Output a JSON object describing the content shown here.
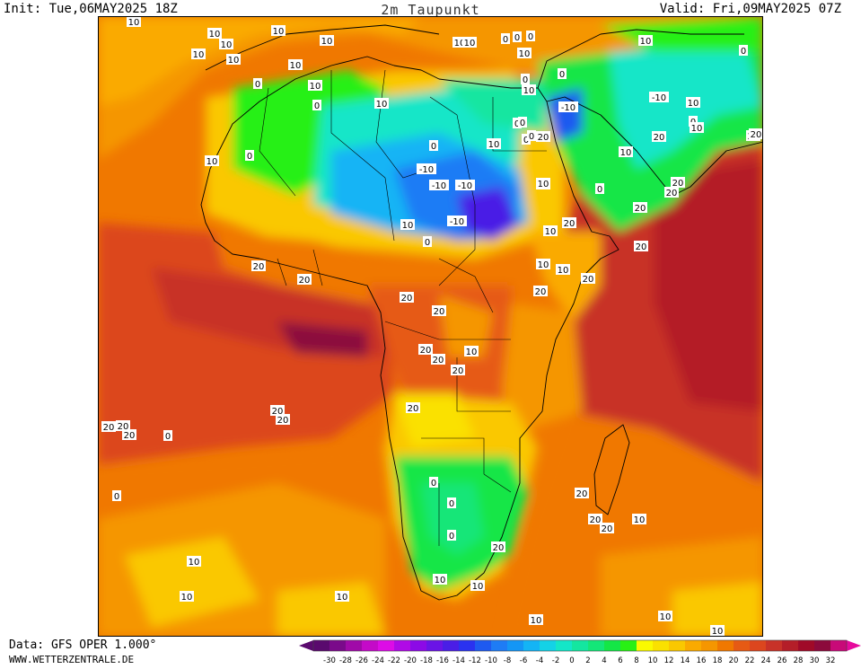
{
  "header": {
    "init_text": "Init: Tue,06MAY2025 18Z",
    "title": "2m Taupunkt",
    "valid_text": "Valid: Fri,09MAY2025 07Z"
  },
  "footer": {
    "data_text": "Data: GFS OPER 1.000°",
    "source_text": "WWW.WETTERZENTRALE.DE"
  },
  "colorbar": {
    "tick_labels": [
      "-30",
      "-28",
      "-26",
      "-24",
      "-22",
      "-20",
      "-18",
      "-16",
      "-14",
      "-12",
      "-10",
      "-8",
      "-6",
      "-4",
      "-2",
      "0",
      "2",
      "4",
      "6",
      "8",
      "10",
      "12",
      "14",
      "16",
      "18",
      "20",
      "22",
      "24",
      "26",
      "28",
      "30",
      "32"
    ],
    "colors": [
      "#5a0a6e",
      "#7a0a8a",
      "#a00aa8",
      "#c40ac8",
      "#dd0ce6",
      "#b00ae6",
      "#8c0ae6",
      "#6a14e6",
      "#4a1ee6",
      "#2a32f0",
      "#1e5af0",
      "#1e7cf5",
      "#1496f5",
      "#14b4f5",
      "#14d2e6",
      "#14e6c8",
      "#14e6a0",
      "#14e678",
      "#14e646",
      "#28f014",
      "#fafa00",
      "#fae100",
      "#fac800",
      "#faaa00",
      "#f59600",
      "#f07800",
      "#e65a14",
      "#dc461e",
      "#c83228",
      "#b41e28",
      "#a00a28",
      "#8c0a3c",
      "#c80a78"
    ],
    "under_color": "#5a0a6e",
    "over_color": "#e60a9c"
  },
  "map": {
    "contour_labels": [
      {
        "text": "10"
      },
      {
        "text": "10"
      },
      {
        "text": "10"
      },
      {
        "text": "10"
      },
      {
        "text": "10"
      },
      {
        "text": "10"
      },
      {
        "text": "10"
      },
      {
        "text": "10"
      },
      {
        "text": "0"
      },
      {
        "text": "0"
      },
      {
        "text": "0"
      },
      {
        "text": "10"
      },
      {
        "text": "0"
      },
      {
        "text": "0"
      },
      {
        "text": "0"
      },
      {
        "text": "10"
      },
      {
        "text": "10"
      },
      {
        "text": "10"
      },
      {
        "text": "0"
      },
      {
        "text": "0"
      },
      {
        "text": "10"
      },
      {
        "text": "-10"
      },
      {
        "text": "0"
      },
      {
        "text": "-10"
      },
      {
        "text": "10"
      },
      {
        "text": "0"
      },
      {
        "text": "0"
      },
      {
        "text": "20"
      },
      {
        "text": "0"
      },
      {
        "text": "0"
      },
      {
        "text": "10"
      },
      {
        "text": "-10"
      },
      {
        "text": "-10"
      },
      {
        "text": "-10"
      },
      {
        "text": "10"
      },
      {
        "text": "-10"
      },
      {
        "text": "10"
      },
      {
        "text": "10"
      },
      {
        "text": "0"
      },
      {
        "text": "10"
      },
      {
        "text": "0"
      },
      {
        "text": "20"
      },
      {
        "text": "10"
      },
      {
        "text": "20"
      },
      {
        "text": "20"
      },
      {
        "text": "10"
      },
      {
        "text": "10"
      },
      {
        "text": "0"
      },
      {
        "text": "0"
      },
      {
        "text": "20"
      },
      {
        "text": "20"
      },
      {
        "text": "20"
      },
      {
        "text": "20"
      },
      {
        "text": "10"
      },
      {
        "text": "20"
      },
      {
        "text": "10"
      },
      {
        "text": "10"
      },
      {
        "text": "20"
      },
      {
        "text": "20"
      },
      {
        "text": "20"
      },
      {
        "text": "20"
      },
      {
        "text": "20"
      },
      {
        "text": "20"
      },
      {
        "text": "20"
      },
      {
        "text": "20"
      },
      {
        "text": "10"
      },
      {
        "text": "20"
      },
      {
        "text": "20"
      },
      {
        "text": "20"
      },
      {
        "text": "20"
      },
      {
        "text": "20"
      },
      {
        "text": "20"
      },
      {
        "text": "20"
      },
      {
        "text": "0"
      },
      {
        "text": "0"
      },
      {
        "text": "0"
      },
      {
        "text": "0"
      },
      {
        "text": "20"
      },
      {
        "text": "20"
      },
      {
        "text": "20"
      },
      {
        "text": "20"
      },
      {
        "text": "0"
      },
      {
        "text": "10"
      },
      {
        "text": "10"
      },
      {
        "text": "10"
      },
      {
        "text": "10"
      },
      {
        "text": "10"
      },
      {
        "text": "10"
      },
      {
        "text": "10"
      },
      {
        "text": "10"
      },
      {
        "text": "10"
      },
      {
        "text": "20"
      },
      {
        "text": "10"
      }
    ]
  }
}
